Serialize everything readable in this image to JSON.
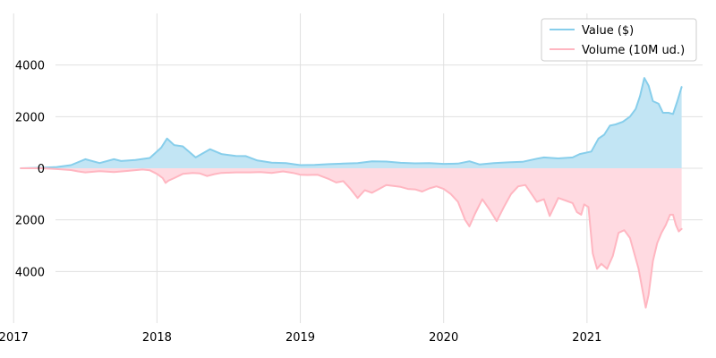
{
  "chart_data": {
    "type": "area",
    "title": "",
    "xlabel": "",
    "ylabel": "",
    "xlim": [
      2016.98,
      2021.9
    ],
    "ylim": [
      -6000,
      6000
    ],
    "grid": true,
    "legend_position": "top-right",
    "x_ticks": [
      {
        "value": 2017,
        "label": "2017"
      },
      {
        "value": 2018,
        "label": "2018"
      },
      {
        "value": 2019,
        "label": "2019"
      },
      {
        "value": 2020,
        "label": "2020"
      },
      {
        "value": 2021,
        "label": "2021"
      }
    ],
    "y_ticks": [
      {
        "value": 4000,
        "label": "4000"
      },
      {
        "value": 2000,
        "label": "2000"
      },
      {
        "value": 0,
        "label": "0"
      },
      {
        "value": -2000,
        "label": "2000"
      },
      {
        "value": -4000,
        "label": "4000"
      }
    ],
    "series": [
      {
        "name": "Value ($)",
        "color": "#87ceeb",
        "fill": "#c2e5f4",
        "sign": 1,
        "points": [
          [
            2017.05,
            0
          ],
          [
            2017.2,
            20
          ],
          [
            2017.3,
            50
          ],
          [
            2017.4,
            120
          ],
          [
            2017.5,
            350
          ],
          [
            2017.6,
            200
          ],
          [
            2017.7,
            350
          ],
          [
            2017.75,
            280
          ],
          [
            2017.85,
            320
          ],
          [
            2017.95,
            400
          ],
          [
            2018.03,
            800
          ],
          [
            2018.07,
            1150
          ],
          [
            2018.12,
            900
          ],
          [
            2018.18,
            850
          ],
          [
            2018.27,
            420
          ],
          [
            2018.37,
            740
          ],
          [
            2018.45,
            550
          ],
          [
            2018.55,
            480
          ],
          [
            2018.62,
            470
          ],
          [
            2018.7,
            300
          ],
          [
            2018.8,
            220
          ],
          [
            2018.9,
            200
          ],
          [
            2019.0,
            120
          ],
          [
            2019.1,
            130
          ],
          [
            2019.2,
            160
          ],
          [
            2019.3,
            180
          ],
          [
            2019.4,
            200
          ],
          [
            2019.5,
            270
          ],
          [
            2019.6,
            260
          ],
          [
            2019.7,
            210
          ],
          [
            2019.8,
            190
          ],
          [
            2019.9,
            200
          ],
          [
            2020.0,
            170
          ],
          [
            2020.1,
            180
          ],
          [
            2020.18,
            270
          ],
          [
            2020.25,
            150
          ],
          [
            2020.35,
            200
          ],
          [
            2020.45,
            230
          ],
          [
            2020.55,
            250
          ],
          [
            2020.65,
            370
          ],
          [
            2020.7,
            420
          ],
          [
            2020.8,
            380
          ],
          [
            2020.9,
            420
          ],
          [
            2020.95,
            550
          ],
          [
            2021.03,
            650
          ],
          [
            2021.08,
            1150
          ],
          [
            2021.12,
            1300
          ],
          [
            2021.16,
            1650
          ],
          [
            2021.2,
            1700
          ],
          [
            2021.25,
            1800
          ],
          [
            2021.3,
            2000
          ],
          [
            2021.34,
            2300
          ],
          [
            2021.37,
            2800
          ],
          [
            2021.4,
            3500
          ],
          [
            2021.43,
            3200
          ],
          [
            2021.46,
            2600
          ],
          [
            2021.5,
            2500
          ],
          [
            2021.53,
            2150
          ],
          [
            2021.57,
            2150
          ],
          [
            2021.6,
            2100
          ],
          [
            2021.63,
            2600
          ],
          [
            2021.66,
            3150
          ]
        ]
      },
      {
        "name": "Volume (10M ud.)",
        "color": "#ffb6c1",
        "fill": "#ffdae1",
        "sign": -1,
        "points": [
          [
            2017.05,
            0
          ],
          [
            2017.2,
            0
          ],
          [
            2017.3,
            30
          ],
          [
            2017.4,
            70
          ],
          [
            2017.45,
            120
          ],
          [
            2017.5,
            160
          ],
          [
            2017.6,
            110
          ],
          [
            2017.7,
            150
          ],
          [
            2017.8,
            100
          ],
          [
            2017.9,
            50
          ],
          [
            2017.95,
            80
          ],
          [
            2018.0,
            220
          ],
          [
            2018.04,
            380
          ],
          [
            2018.06,
            570
          ],
          [
            2018.08,
            480
          ],
          [
            2018.12,
            380
          ],
          [
            2018.18,
            220
          ],
          [
            2018.25,
            180
          ],
          [
            2018.3,
            200
          ],
          [
            2018.35,
            300
          ],
          [
            2018.4,
            230
          ],
          [
            2018.45,
            180
          ],
          [
            2018.55,
            160
          ],
          [
            2018.65,
            160
          ],
          [
            2018.72,
            150
          ],
          [
            2018.8,
            180
          ],
          [
            2018.88,
            120
          ],
          [
            2018.95,
            180
          ],
          [
            2019.0,
            250
          ],
          [
            2019.05,
            260
          ],
          [
            2019.12,
            250
          ],
          [
            2019.2,
            420
          ],
          [
            2019.25,
            550
          ],
          [
            2019.3,
            500
          ],
          [
            2019.35,
            800
          ],
          [
            2019.4,
            1150
          ],
          [
            2019.45,
            850
          ],
          [
            2019.5,
            950
          ],
          [
            2019.55,
            800
          ],
          [
            2019.6,
            650
          ],
          [
            2019.7,
            720
          ],
          [
            2019.75,
            800
          ],
          [
            2019.8,
            820
          ],
          [
            2019.85,
            900
          ],
          [
            2019.9,
            780
          ],
          [
            2019.95,
            700
          ],
          [
            2020.0,
            800
          ],
          [
            2020.05,
            1000
          ],
          [
            2020.1,
            1300
          ],
          [
            2020.15,
            2000
          ],
          [
            2020.18,
            2250
          ],
          [
            2020.22,
            1750
          ],
          [
            2020.27,
            1200
          ],
          [
            2020.32,
            1600
          ],
          [
            2020.37,
            2050
          ],
          [
            2020.42,
            1500
          ],
          [
            2020.47,
            1000
          ],
          [
            2020.52,
            700
          ],
          [
            2020.57,
            650
          ],
          [
            2020.62,
            1050
          ],
          [
            2020.65,
            1300
          ],
          [
            2020.7,
            1200
          ],
          [
            2020.74,
            1850
          ],
          [
            2020.77,
            1500
          ],
          [
            2020.8,
            1150
          ],
          [
            2020.85,
            1250
          ],
          [
            2020.9,
            1350
          ],
          [
            2020.93,
            1700
          ],
          [
            2020.96,
            1800
          ],
          [
            2020.98,
            1400
          ],
          [
            2021.01,
            1500
          ],
          [
            2021.04,
            3300
          ],
          [
            2021.07,
            3900
          ],
          [
            2021.1,
            3700
          ],
          [
            2021.14,
            3900
          ],
          [
            2021.18,
            3400
          ],
          [
            2021.22,
            2500
          ],
          [
            2021.26,
            2400
          ],
          [
            2021.3,
            2700
          ],
          [
            2021.33,
            3300
          ],
          [
            2021.36,
            3900
          ],
          [
            2021.39,
            4800
          ],
          [
            2021.41,
            5400
          ],
          [
            2021.43,
            4900
          ],
          [
            2021.46,
            3600
          ],
          [
            2021.49,
            2900
          ],
          [
            2021.52,
            2500
          ],
          [
            2021.55,
            2200
          ],
          [
            2021.58,
            1800
          ],
          [
            2021.6,
            1800
          ],
          [
            2021.62,
            2200
          ],
          [
            2021.64,
            2450
          ],
          [
            2021.66,
            2350
          ]
        ]
      }
    ]
  }
}
